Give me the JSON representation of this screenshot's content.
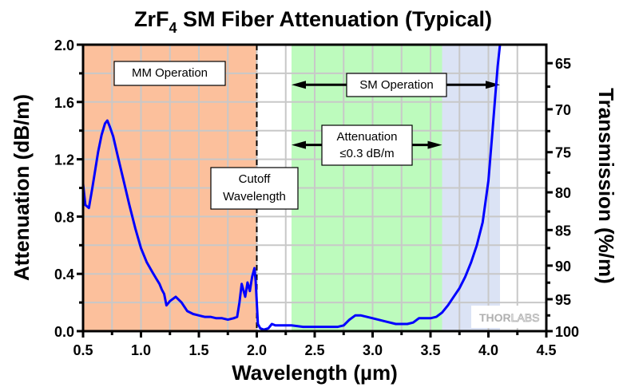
{
  "chart_data": {
    "type": "line",
    "title_main": "ZrF",
    "title_sub": "4",
    "title_rest": " SM Fiber Attenuation (Typical)",
    "xlabel": "Wavelength (µm)",
    "ylabel": "Attenuation (dB/m)",
    "y2label": "Transmission (%/m)",
    "xlim": [
      0.5,
      4.5
    ],
    "ylim": [
      0.0,
      2.0
    ],
    "xticks": [
      "0.5",
      "1.0",
      "1.5",
      "2.0",
      "2.5",
      "3.0",
      "3.5",
      "4.0",
      "4.5"
    ],
    "xtick_values": [
      0.5,
      1.0,
      1.5,
      2.0,
      2.5,
      3.0,
      3.5,
      4.0,
      4.5
    ],
    "yticks": [
      "0.0",
      "0.4",
      "0.8",
      "1.2",
      "1.6",
      "2.0"
    ],
    "ytick_values": [
      0.0,
      0.4,
      0.8,
      1.2,
      1.6,
      2.0
    ],
    "y2ticks": [
      "65",
      "70",
      "75",
      "80",
      "85",
      "90",
      "95",
      "100"
    ],
    "y2tick_values": [
      65,
      70,
      75,
      80,
      85,
      90,
      95,
      100
    ],
    "y2_minor_values": [
      67.5,
      72.5,
      77.5,
      82.5,
      87.5,
      92.5,
      97.5
    ],
    "x_grid_step": 0.25,
    "y_grid_step": 0.2,
    "grid": true,
    "regions": [
      {
        "name": "MM Operation",
        "x0": 0.5,
        "x1": 2.0,
        "color": "#fcc09c"
      },
      {
        "name": "Attenuation ≤0.3 dB/m",
        "x0": 2.3,
        "x1": 3.6,
        "color": "#bdfbbd"
      },
      {
        "name": "SM Operation tail",
        "x0": 3.6,
        "x1": 4.1,
        "color": "#dbe3f5"
      }
    ],
    "cutoff_wavelength": 2.0,
    "annotations": [
      {
        "id": "mm",
        "lines": [
          "MM Operation"
        ]
      },
      {
        "id": "cutoff",
        "lines": [
          "Cutoff",
          "Wavelength"
        ]
      },
      {
        "id": "sm",
        "lines": [
          "SM Operation"
        ],
        "arrow_from": 2.3,
        "arrow_to": 4.1,
        "y": 1.72
      },
      {
        "id": "att",
        "lines": [
          "Attenuation",
          "≤0.3 dB/m"
        ],
        "arrow_from": 2.3,
        "arrow_to": 3.6,
        "y": 1.3
      }
    ],
    "series": [
      {
        "name": "Attenuation",
        "color": "#0000ff",
        "x": [
          0.5,
          0.52,
          0.55,
          0.58,
          0.6,
          0.63,
          0.66,
          0.69,
          0.71,
          0.73,
          0.76,
          0.8,
          0.85,
          0.9,
          0.95,
          1.0,
          1.05,
          1.1,
          1.13,
          1.16,
          1.18,
          1.2,
          1.22,
          1.25,
          1.3,
          1.35,
          1.4,
          1.45,
          1.5,
          1.55,
          1.6,
          1.65,
          1.7,
          1.75,
          1.8,
          1.83,
          1.85,
          1.87,
          1.9,
          1.92,
          1.94,
          1.96,
          1.98,
          1.99,
          2.0,
          2.01,
          2.03,
          2.06,
          2.1,
          2.13,
          2.16,
          2.2,
          2.25,
          2.3,
          2.4,
          2.5,
          2.6,
          2.7,
          2.75,
          2.8,
          2.85,
          2.9,
          3.0,
          3.1,
          3.2,
          3.3,
          3.35,
          3.4,
          3.45,
          3.5,
          3.55,
          3.6,
          3.65,
          3.7,
          3.75,
          3.8,
          3.85,
          3.9,
          3.95,
          4.0,
          4.03,
          4.06,
          4.08,
          4.1
        ],
        "y": [
          1.03,
          0.88,
          0.86,
          1.0,
          1.1,
          1.25,
          1.37,
          1.45,
          1.47,
          1.43,
          1.36,
          1.22,
          1.05,
          0.88,
          0.72,
          0.58,
          0.48,
          0.41,
          0.37,
          0.33,
          0.29,
          0.26,
          0.18,
          0.21,
          0.24,
          0.2,
          0.14,
          0.12,
          0.11,
          0.1,
          0.1,
          0.09,
          0.09,
          0.08,
          0.09,
          0.1,
          0.2,
          0.33,
          0.24,
          0.34,
          0.28,
          0.38,
          0.44,
          0.35,
          0.2,
          0.05,
          0.02,
          0.01,
          0.02,
          0.05,
          0.04,
          0.04,
          0.04,
          0.04,
          0.03,
          0.03,
          0.03,
          0.03,
          0.04,
          0.08,
          0.11,
          0.11,
          0.09,
          0.07,
          0.05,
          0.05,
          0.06,
          0.09,
          0.09,
          0.09,
          0.1,
          0.13,
          0.18,
          0.24,
          0.3,
          0.38,
          0.48,
          0.6,
          0.76,
          1.05,
          1.35,
          1.65,
          1.85,
          2.0
        ]
      }
    ],
    "watermark": {
      "bold": "THOR",
      "outline": "LABS"
    }
  }
}
